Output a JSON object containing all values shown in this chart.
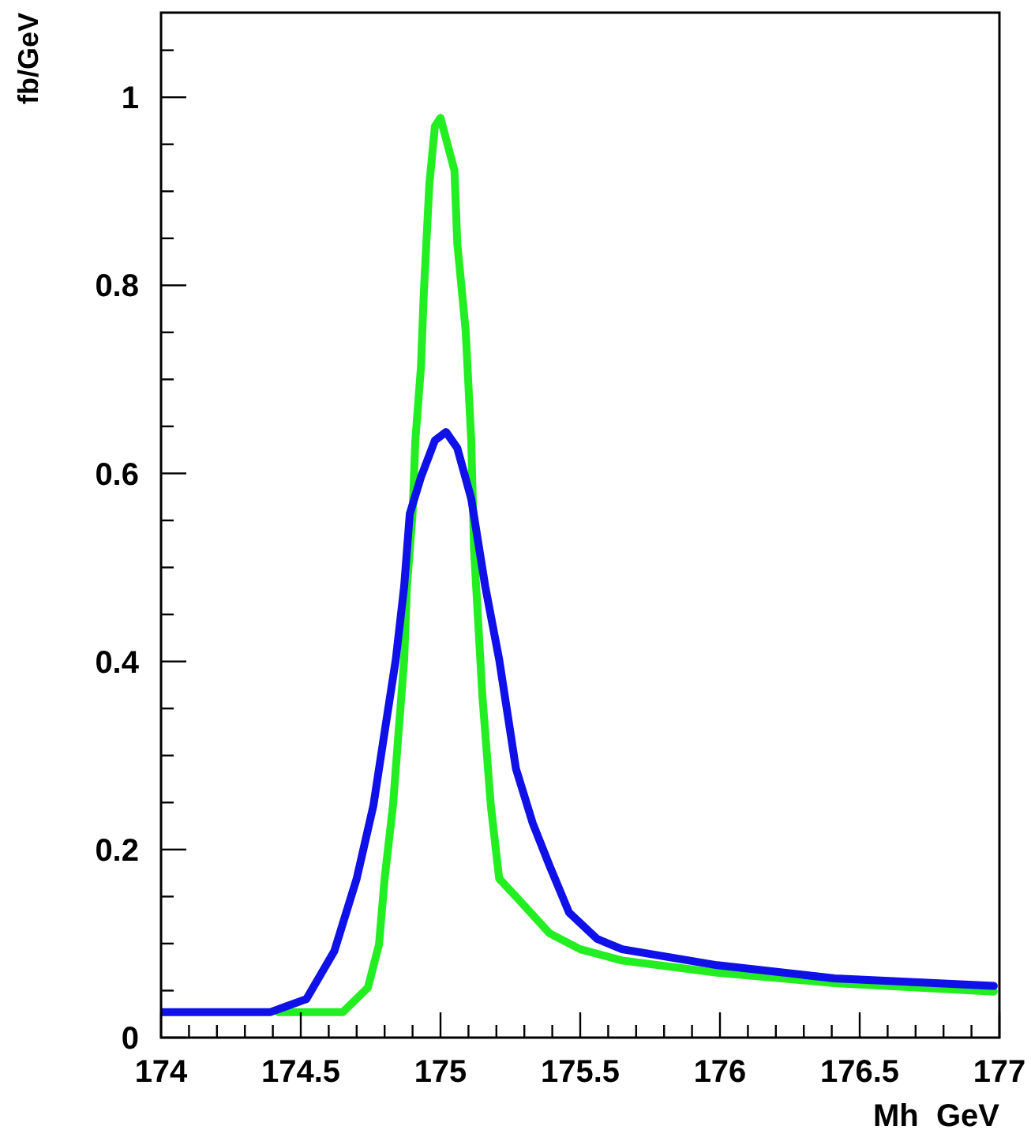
{
  "chart_data": {
    "type": "line",
    "xlabel": "Mh  GeV",
    "ylabel": "fb/GeV",
    "xlim": [
      174,
      177
    ],
    "ylim": [
      0,
      1.09
    ],
    "xticks": [
      174,
      {
        "value": 174.1,
        "label": null
      },
      {
        "value": 174.2,
        "label": null
      },
      {
        "value": 174.3,
        "label": null
      },
      {
        "value": 174.4,
        "label": null
      },
      174.5,
      {
        "value": 174.6,
        "label": null
      },
      {
        "value": 174.7,
        "label": null
      },
      {
        "value": 174.8,
        "label": null
      },
      {
        "value": 174.9,
        "label": null
      },
      175,
      {
        "value": 175.1,
        "label": null
      },
      {
        "value": 175.2,
        "label": null
      },
      {
        "value": 175.3,
        "label": null
      },
      {
        "value": 175.4,
        "label": null
      },
      175.5,
      {
        "value": 175.6,
        "label": null
      },
      {
        "value": 175.7,
        "label": null
      },
      {
        "value": 175.8,
        "label": null
      },
      {
        "value": 175.9,
        "label": null
      },
      176,
      {
        "value": 176.1,
        "label": null
      },
      {
        "value": 176.2,
        "label": null
      },
      {
        "value": 176.3,
        "label": null
      },
      {
        "value": 176.4,
        "label": null
      },
      176.5,
      {
        "value": 176.6,
        "label": null
      },
      {
        "value": 176.7,
        "label": null
      },
      {
        "value": 176.8,
        "label": null
      },
      {
        "value": 176.9,
        "label": null
      },
      177
    ],
    "yticks": [
      0,
      {
        "value": 0.05,
        "label": null
      },
      {
        "value": 0.1,
        "label": null
      },
      {
        "value": 0.15,
        "label": null
      },
      0.2,
      {
        "value": 0.25,
        "label": null
      },
      {
        "value": 0.3,
        "label": null
      },
      {
        "value": 0.35,
        "label": null
      },
      0.4,
      {
        "value": 0.45,
        "label": null
      },
      {
        "value": 0.5,
        "label": null
      },
      {
        "value": 0.55,
        "label": null
      },
      0.6,
      {
        "value": 0.65,
        "label": null
      },
      {
        "value": 0.7,
        "label": null
      },
      {
        "value": 0.75,
        "label": null
      },
      0.8,
      {
        "value": 0.85,
        "label": null
      },
      {
        "value": 0.9,
        "label": null
      },
      {
        "value": 0.95,
        "label": null
      },
      1,
      {
        "value": 1.05,
        "label": null
      }
    ],
    "grid": false,
    "marker": "none",
    "line_style": "solid",
    "series": [
      {
        "color": "#22ee22",
        "x": [
          174.42,
          174.65,
          174.74,
          174.78,
          174.8,
          174.83,
          174.85,
          174.87,
          174.88,
          174.9,
          174.91,
          174.93,
          174.94,
          174.96,
          174.98,
          175,
          175.05,
          175.06,
          175.09,
          175.11,
          175.12,
          175.15,
          175.18,
          175.21,
          175.27,
          175.39,
          175.5,
          175.65,
          175.99,
          176.41,
          176.98
        ],
        "values": [
          0.027,
          0.027,
          0.053,
          0.099,
          0.169,
          0.247,
          0.325,
          0.402,
          0.48,
          0.557,
          0.635,
          0.713,
          0.79,
          0.907,
          0.969,
          0.978,
          0.922,
          0.845,
          0.752,
          0.635,
          0.519,
          0.363,
          0.247,
          0.169,
          0.15,
          0.111,
          0.094,
          0.082,
          0.069,
          0.058,
          0.049
        ]
      },
      {
        "color": "#1010e8",
        "x": [
          174,
          174.39,
          174.52,
          174.62,
          174.7,
          174.76,
          174.8,
          174.84,
          174.87,
          174.89,
          174.93,
          174.98,
          175.02,
          175.06,
          175.11,
          175.16,
          175.21,
          175.27,
          175.33,
          175.39,
          175.46,
          175.56,
          175.65,
          175.99,
          176.41,
          176.98
        ],
        "values": [
          0.027,
          0.027,
          0.041,
          0.092,
          0.169,
          0.247,
          0.325,
          0.402,
          0.48,
          0.557,
          0.596,
          0.635,
          0.644,
          0.627,
          0.573,
          0.48,
          0.402,
          0.286,
          0.228,
          0.183,
          0.133,
          0.105,
          0.094,
          0.077,
          0.063,
          0.055
        ]
      }
    ]
  }
}
